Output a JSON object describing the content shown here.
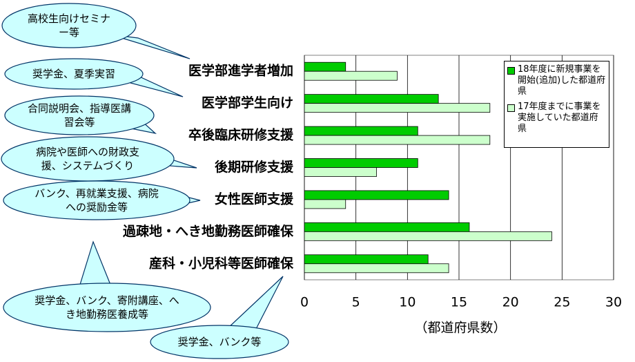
{
  "chart_data": {
    "type": "bar",
    "orientation": "horizontal",
    "categories": [
      "医学部進学者増加",
      "医学部学生向け",
      "卒後臨床研修支援",
      "後期研修支援",
      "女性医師支援",
      "過疎地・へき地勤務医師確保",
      "産科・小児科等医師確保"
    ],
    "series": [
      {
        "name": "18年度に新規事業を開始(追加)した都道府県",
        "color": "#00cc00",
        "values": [
          4,
          13,
          11,
          11,
          14,
          16,
          12
        ]
      },
      {
        "name": "17年度までに事業を実施していた都道府県",
        "color": "#ccffcc",
        "values": [
          9,
          18,
          18,
          7,
          4,
          24,
          14
        ]
      }
    ],
    "xlim": [
      0,
      30
    ],
    "xticks": [
      0,
      5,
      10,
      15,
      20,
      25,
      30
    ],
    "grid": true,
    "x_label": "（都道府県数）",
    "legend": "upper right",
    "annotations": [
      "高校生向けセミナー等",
      "奨学金、夏季実習",
      "合同説明会、指導医講習会等",
      "病院や医師への財政支援、システムづくり",
      "バンク、再就業支援、病院への奨励金等",
      "奨学金、バンク、寄附講座、へき地勤務医養成等",
      "奨学金、バンク等"
    ]
  }
}
